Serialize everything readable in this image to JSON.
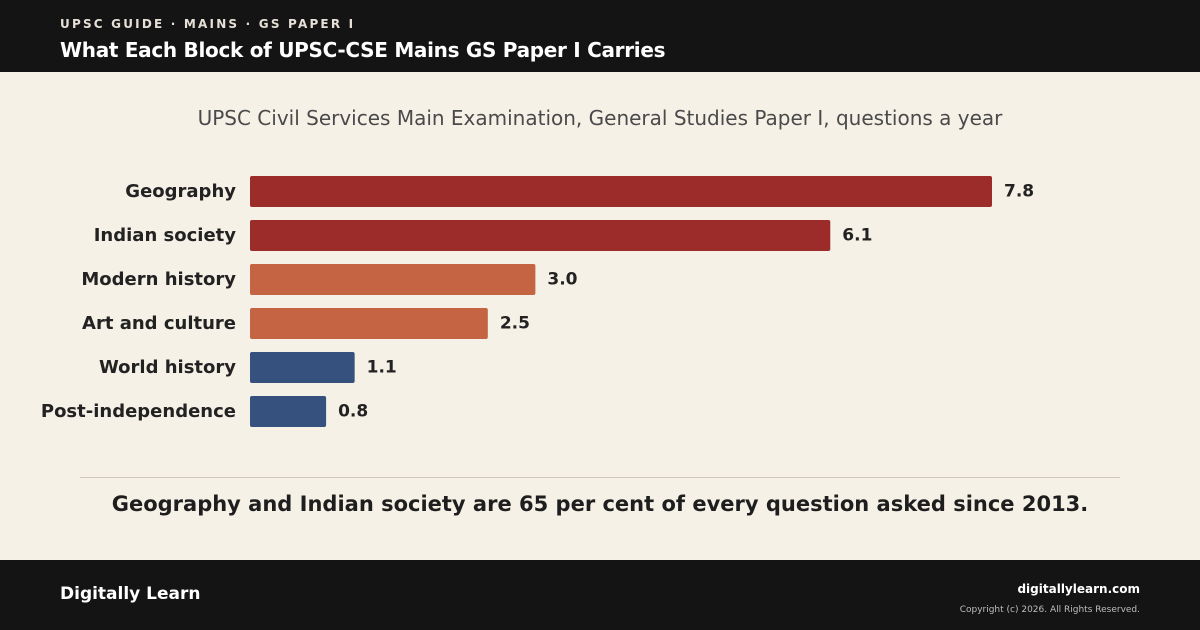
{
  "header": {
    "eyebrow": "UPSC GUIDE · MAINS · GS PAPER I",
    "title": "What Each Block of UPSC-CSE Mains GS Paper I Carries"
  },
  "takeaway": "Geography and Indian society are 65 per cent of every question asked since 2013.",
  "footer": {
    "brand": "Digitally Learn",
    "site": "digitallylearn.com",
    "copyright": "Copyright (c) 2026. All Rights Reserved."
  },
  "colors": {
    "header_bg": "#141414",
    "page_bg": "#f6f1e7",
    "dark_red": "#9b2c2a",
    "orange": "#c46442",
    "navy": "#36517d"
  },
  "chart_data": {
    "type": "bar",
    "orientation": "horizontal",
    "title": "UPSC Civil Services Main Examination, General Studies Paper I, questions a year",
    "categories": [
      "Geography",
      "Indian society",
      "Modern history",
      "Art and culture",
      "World history",
      "Post-independence"
    ],
    "values": [
      7.8,
      6.1,
      3.0,
      2.5,
      1.1,
      0.8
    ],
    "value_labels": [
      "7.8",
      "6.1",
      "3.0",
      "2.5",
      "1.1",
      "0.8"
    ],
    "bar_colors": [
      "#9b2c2a",
      "#9b2c2a",
      "#c46442",
      "#c46442",
      "#36517d",
      "#36517d"
    ],
    "xlim": [
      0,
      7.8
    ],
    "grid": false,
    "legend": "none"
  }
}
